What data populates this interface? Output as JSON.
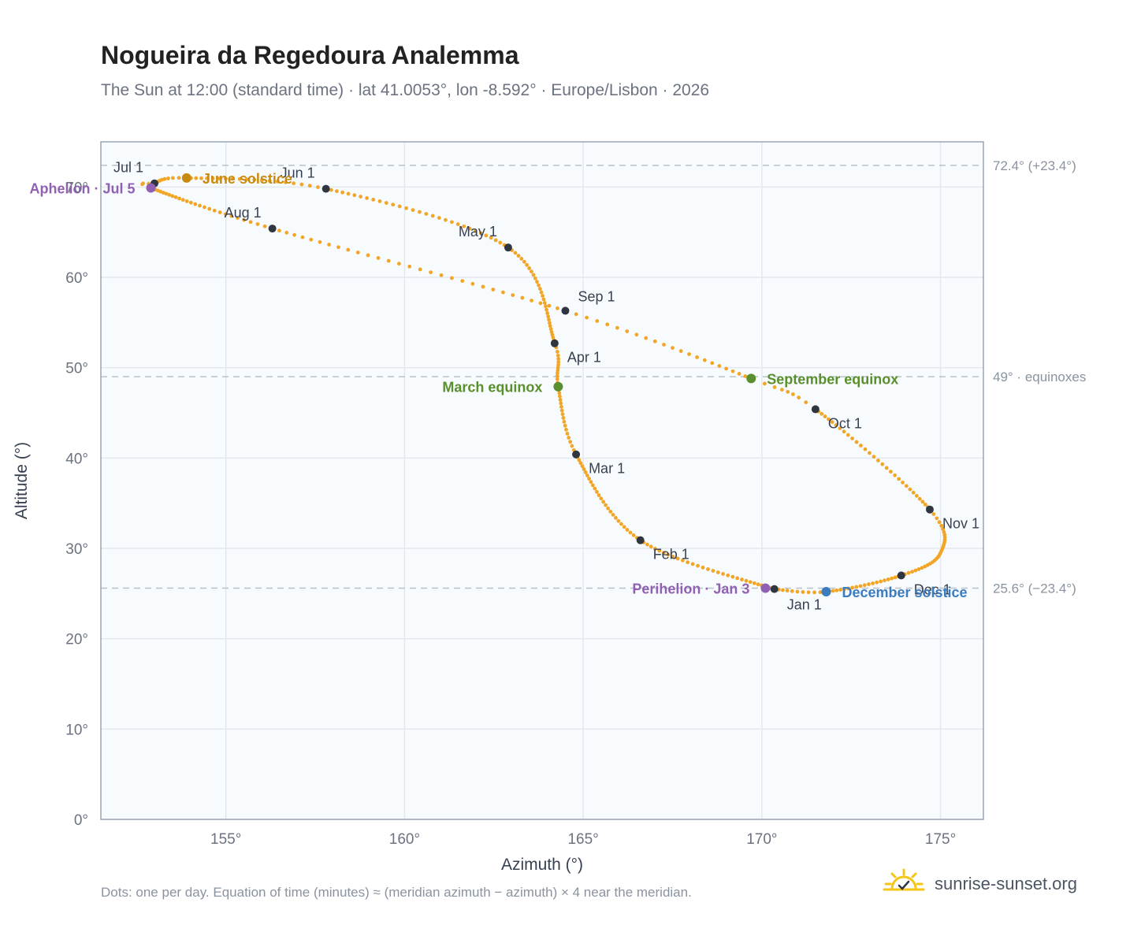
{
  "title": "Nogueira da Regedoura Analemma",
  "subtitle": "The Sun at 12:00 (standard time) · lat 41.0053°, lon -8.592° · Europe/Lisbon · 2026",
  "footnote": "Dots: one per day. Equation of time (minutes) ≈ (meridian azimuth − azimuth) × 4 near the meridian.",
  "brand": {
    "text": "sunrise-sunset.org",
    "icon": "sun-check-icon"
  },
  "colors": {
    "curve": "#f2a627",
    "month_dot": "#2f3640",
    "aphelion": "#9061b3",
    "perihelion": "#9061b3",
    "june_solstice": "#c98a10",
    "december_solstice": "#3b7bbf",
    "equinox": "#5a8f2e",
    "plot_bg": "#f8fbfd",
    "grid": "#e3e8ee",
    "reference_line": "#b8c2cc"
  },
  "chart_data": {
    "type": "scatter",
    "xlabel": "Azimuth (°)",
    "ylabel": "Altitude (°)",
    "xlim": [
      151.5,
      176.2
    ],
    "ylim": [
      0,
      75
    ],
    "x_ticks": [
      155,
      160,
      165,
      170,
      175
    ],
    "x_tick_labels": [
      "155°",
      "160°",
      "165°",
      "170°",
      "175°"
    ],
    "y_ticks": [
      0,
      10,
      20,
      30,
      40,
      50,
      60,
      70
    ],
    "y_tick_labels": [
      "0°",
      "10°",
      "20°",
      "30°",
      "40°",
      "50°",
      "60°",
      "70°"
    ],
    "grid": true,
    "curve_anchors": [
      {
        "doy": 1,
        "az": 170.3,
        "alt": 25.5
      },
      {
        "doy": 32,
        "az": 166.6,
        "alt": 30.9
      },
      {
        "doy": 60,
        "az": 164.8,
        "alt": 40.4
      },
      {
        "doy": 78,
        "az": 164.3,
        "alt": 47.9
      },
      {
        "doy": 91,
        "az": 164.2,
        "alt": 52.8
      },
      {
        "doy": 121,
        "az": 162.9,
        "alt": 63.3
      },
      {
        "doy": 152,
        "az": 157.8,
        "alt": 69.8
      },
      {
        "doy": 172,
        "az": 153.9,
        "alt": 71.0
      },
      {
        "doy": 182,
        "az": 153.0,
        "alt": 70.4
      },
      {
        "doy": 186,
        "az": 152.9,
        "alt": 69.9
      },
      {
        "doy": 213,
        "az": 156.3,
        "alt": 65.4
      },
      {
        "doy": 244,
        "az": 164.5,
        "alt": 56.3
      },
      {
        "doy": 266,
        "az": 169.7,
        "alt": 48.8
      },
      {
        "doy": 274,
        "az": 171.5,
        "alt": 45.4
      },
      {
        "doy": 305,
        "az": 174.7,
        "alt": 34.3
      },
      {
        "doy": 320,
        "az": 175.0,
        "alt": 29.5
      },
      {
        "doy": 335,
        "az": 173.9,
        "alt": 27.0
      },
      {
        "doy": 355,
        "az": 171.8,
        "alt": 25.2
      },
      {
        "doy": 366,
        "az": 170.3,
        "alt": 25.5
      }
    ],
    "month_markers": [
      {
        "label": "Jan 1",
        "az": 170.35,
        "alt": 25.5,
        "label_pos": "below"
      },
      {
        "label": "Feb 1",
        "az": 166.6,
        "alt": 30.9,
        "label_pos": "below-right"
      },
      {
        "label": "Mar 1",
        "az": 164.8,
        "alt": 40.4,
        "label_pos": "below-right"
      },
      {
        "label": "Apr 1",
        "az": 164.2,
        "alt": 52.7,
        "label_pos": "below-right"
      },
      {
        "label": "May 1",
        "az": 162.9,
        "alt": 63.3,
        "label_pos": "above-left"
      },
      {
        "label": "Jun 1",
        "az": 157.8,
        "alt": 69.8,
        "label_pos": "above-left"
      },
      {
        "label": "Jul 1",
        "az": 153.0,
        "alt": 70.4,
        "label_pos": "above-left"
      },
      {
        "label": "Aug 1",
        "az": 156.3,
        "alt": 65.4,
        "label_pos": "above-left"
      },
      {
        "label": "Sep 1",
        "az": 164.5,
        "alt": 56.3,
        "label_pos": "above-right"
      },
      {
        "label": "Oct 1",
        "az": 171.5,
        "alt": 45.4,
        "label_pos": "below-right"
      },
      {
        "label": "Nov 1",
        "az": 174.7,
        "alt": 34.3,
        "label_pos": "below-right"
      },
      {
        "label": "Dec 1",
        "az": 173.9,
        "alt": 27.0,
        "label_pos": "below-right"
      }
    ],
    "special_points": [
      {
        "label": "Aphelion · Jul 5",
        "az": 152.9,
        "alt": 69.9,
        "color_key": "aphelion",
        "label_pos": "left"
      },
      {
        "label": "June solstice",
        "az": 153.9,
        "alt": 71.0,
        "color_key": "june_solstice",
        "label_pos": "right"
      },
      {
        "label": "March equinox",
        "az": 164.3,
        "alt": 47.9,
        "color_key": "equinox",
        "label_pos": "left"
      },
      {
        "label": "September equinox",
        "az": 169.7,
        "alt": 48.8,
        "color_key": "equinox",
        "label_pos": "right"
      },
      {
        "label": "Perihelion · Jan 3",
        "az": 170.1,
        "alt": 25.6,
        "color_key": "perihelion",
        "label_pos": "left"
      },
      {
        "label": "December solstice",
        "az": 171.8,
        "alt": 25.2,
        "color_key": "december_solstice",
        "label_pos": "right"
      }
    ],
    "reference_lines": [
      {
        "alt": 72.4,
        "label": "72.4° (+23.4°)"
      },
      {
        "alt": 49.0,
        "label": "49° · equinoxes"
      },
      {
        "alt": 25.6,
        "label": "25.6° (−23.4°)"
      }
    ]
  }
}
